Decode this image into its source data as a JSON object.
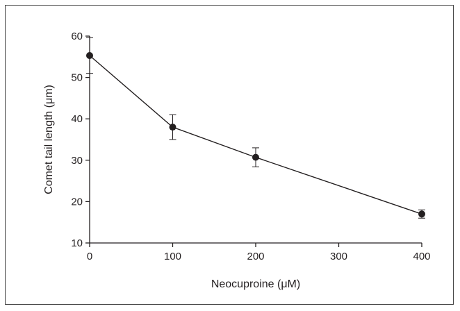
{
  "chart_data": {
    "type": "line",
    "title": "",
    "xlabel": "Neocuproine (μM)",
    "ylabel": "Comet tail length (μm)",
    "xlim": [
      0,
      400
    ],
    "ylim": [
      10,
      60
    ],
    "xticks": [
      0,
      100,
      200,
      300,
      400
    ],
    "yticks": [
      10,
      20,
      30,
      40,
      50,
      60
    ],
    "series": [
      {
        "x": [
          0,
          100,
          200,
          400
        ],
        "y": [
          55.3,
          38.0,
          30.7,
          17.0
        ],
        "err": [
          4.3,
          3.0,
          2.3,
          1.0
        ]
      }
    ],
    "grid": false,
    "legend": "none"
  },
  "colors": {
    "ink": "#231f20"
  }
}
